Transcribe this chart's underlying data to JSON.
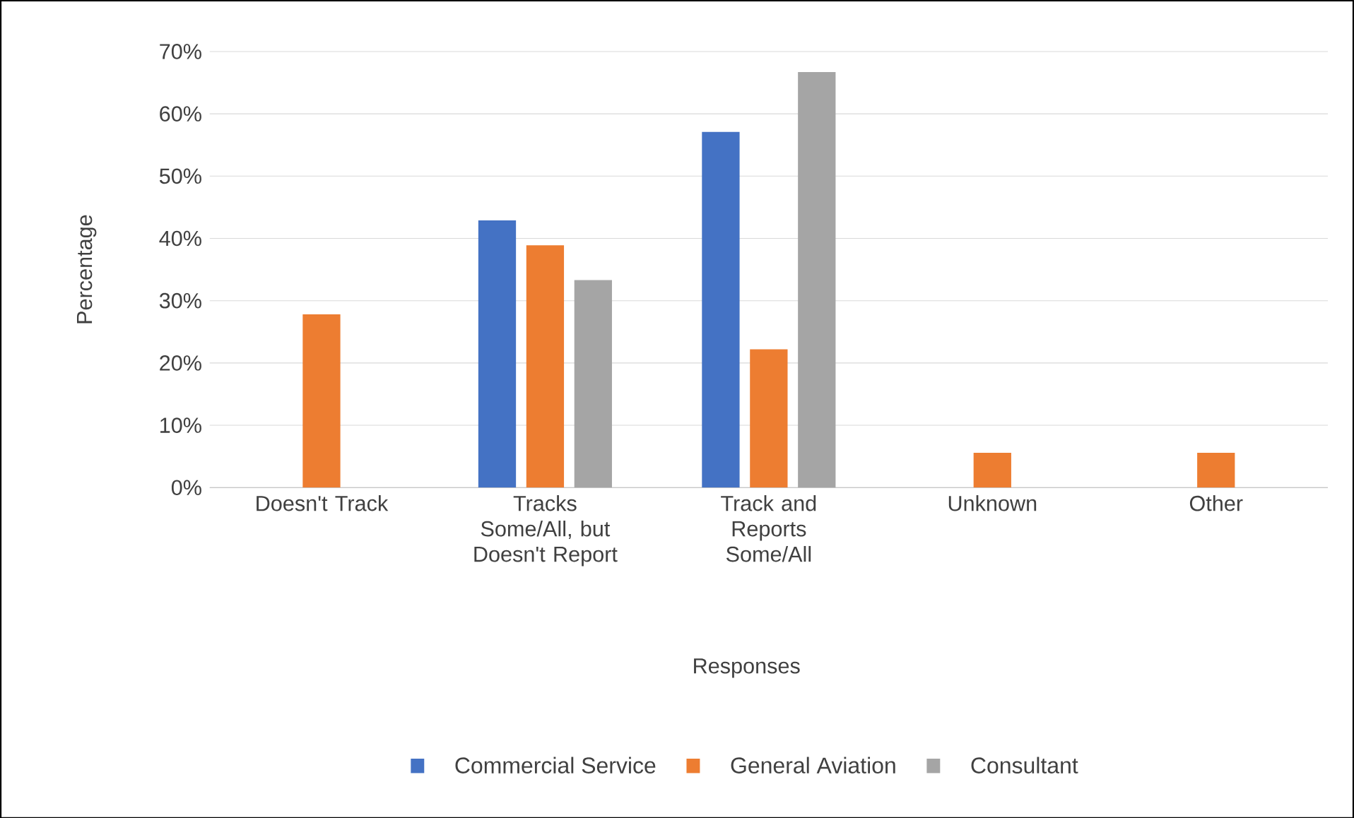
{
  "chart_data": {
    "type": "bar",
    "xlabel": "Responses",
    "ylabel": "Percentage",
    "categories": [
      "Doesn't Track",
      "Tracks Some/All, but Doesn't Report",
      "Track and Reports Some/All",
      "Unknown",
      "Other"
    ],
    "series": [
      {
        "name": "Commercial Service",
        "color": "#4472c4",
        "values": [
          0,
          42.9,
          57.1,
          0,
          0
        ]
      },
      {
        "name": "General Aviation",
        "color": "#ed7d31",
        "values": [
          27.8,
          38.9,
          22.2,
          5.6,
          5.6
        ]
      },
      {
        "name": "Consultant",
        "color": "#a5a5a5",
        "values": [
          0,
          33.3,
          66.7,
          0,
          0
        ]
      }
    ],
    "ylim": [
      0,
      70
    ],
    "yticks": [
      {
        "value": 0,
        "label": "0%"
      },
      {
        "value": 10,
        "label": "10%"
      },
      {
        "value": 20,
        "label": "20%"
      },
      {
        "value": 30,
        "label": "30%"
      },
      {
        "value": 40,
        "label": "40%"
      },
      {
        "value": 50,
        "label": "50%"
      },
      {
        "value": 60,
        "label": "60%"
      },
      {
        "value": 70,
        "label": "70%"
      }
    ],
    "grid": "y",
    "legend": "bottom"
  }
}
